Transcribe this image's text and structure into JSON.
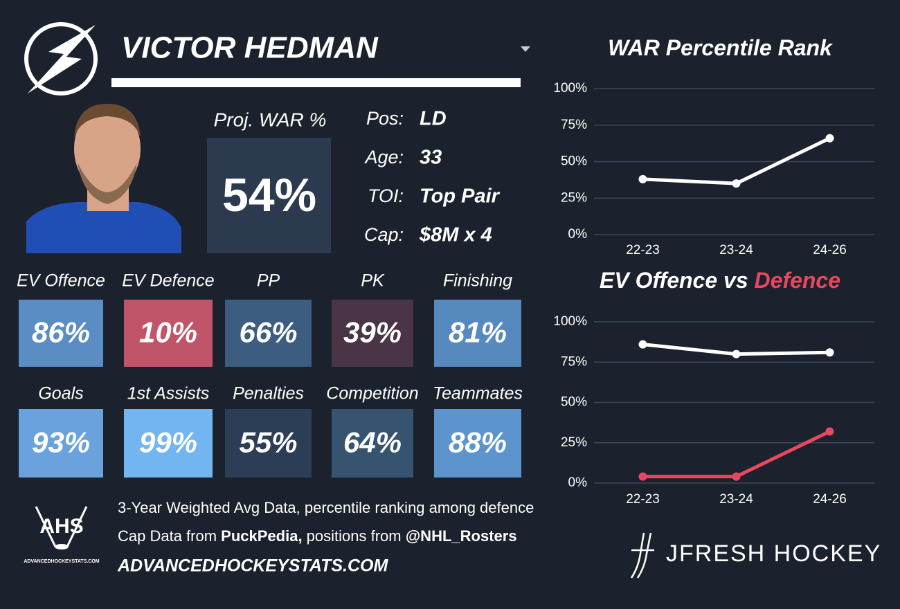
{
  "header": {
    "name": "VICTOR HEDMAN"
  },
  "projection": {
    "label": "Proj. WAR %",
    "value": "54%"
  },
  "info": [
    {
      "label": "Pos:",
      "value": "LD"
    },
    {
      "label": "Age:",
      "value": "33"
    },
    {
      "label": "TOI:",
      "value": "Top Pair"
    },
    {
      "label": "Cap:",
      "value": "$8M x 4"
    }
  ],
  "tiles": [
    {
      "label": "EV Offence",
      "value": "86%",
      "color": "#5a8dc3"
    },
    {
      "label": "EV Defence",
      "value": "10%",
      "color": "#c05469"
    },
    {
      "label": "PP",
      "value": "66%",
      "color": "#3c5c80"
    },
    {
      "label": "PK",
      "value": "39%",
      "color": "#4a3547"
    },
    {
      "label": "Finishing",
      "value": "81%",
      "color": "#5689be"
    },
    {
      "label": "Goals",
      "value": "93%",
      "color": "#69a2dc"
    },
    {
      "label": "1st Assists",
      "value": "99%",
      "color": "#72b5f0"
    },
    {
      "label": "Penalties",
      "value": "55%",
      "color": "#2c3e55"
    },
    {
      "label": "Competition",
      "value": "64%",
      "color": "#36546f"
    },
    {
      "label": "Teammates",
      "value": "88%",
      "color": "#5c95cd"
    }
  ],
  "footer": {
    "note": "3-Year Weighted Avg Data, percentile ranking among defence",
    "sources": [
      {
        "text": "Cap Data from ",
        "bold": false
      },
      {
        "text": "PuckPedia,",
        "bold": true
      },
      {
        "text": " positions from ",
        "bold": false
      },
      {
        "text": "@NHL_Rosters",
        "bold": true
      }
    ],
    "url": "ADVANCEDHOCKEYSTATS.COM",
    "ahs_logo": "AHS",
    "ahs_logo_url": "ADVANCEDHOCKEYSTATS.COM",
    "brand": "JFRESH HOCKEY"
  },
  "chart_data": [
    {
      "type": "line",
      "title_parts": [
        {
          "text": "WAR Percentile Rank",
          "color": "#ffffff"
        }
      ],
      "categories": [
        "22-23",
        "23-24",
        "24-26"
      ],
      "series": [
        {
          "color": "#ffffff",
          "values": [
            38,
            35,
            66
          ]
        }
      ],
      "ylim": [
        0,
        100
      ],
      "yticks": [
        {
          "value": 0,
          "label": "0%"
        },
        {
          "value": 25,
          "label": "25%"
        },
        {
          "value": 50,
          "label": "50%"
        },
        {
          "value": 75,
          "label": "75%"
        },
        {
          "value": 100,
          "label": "100%"
        }
      ],
      "grid": true
    },
    {
      "type": "line",
      "title_parts": [
        {
          "text": "EV Offence vs ",
          "color": "#ffffff"
        },
        {
          "text": "Defence",
          "color": "#e8485f"
        }
      ],
      "categories": [
        "22-23",
        "23-24",
        "24-26"
      ],
      "series": [
        {
          "color": "#ffffff",
          "values": [
            86,
            80,
            81
          ]
        },
        {
          "color": "#e8485f",
          "values": [
            4,
            4,
            32
          ]
        }
      ],
      "ylim": [
        0,
        100
      ],
      "yticks": [
        {
          "value": 0,
          "label": "0%"
        },
        {
          "value": 25,
          "label": "25%"
        },
        {
          "value": 50,
          "label": "50%"
        },
        {
          "value": 75,
          "label": "75%"
        },
        {
          "value": 100,
          "label": "100%"
        }
      ],
      "grid": true
    }
  ]
}
